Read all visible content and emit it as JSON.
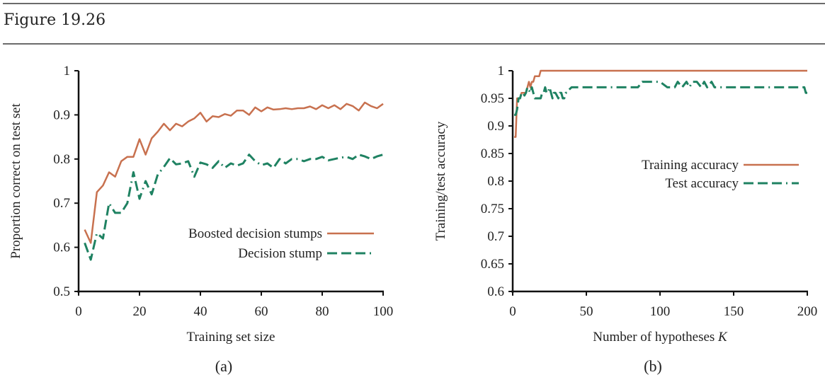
{
  "figure": {
    "title": "Figure 19.26"
  },
  "colors": {
    "orange": "#c8714f",
    "green": "#1f8262",
    "axis": "#111111",
    "rule": "#6b6b6b"
  },
  "chart_data": [
    {
      "type": "line",
      "panel_label": "(a)",
      "title": "",
      "xlabel": "Training set size",
      "ylabel": "Proportion correct on test set",
      "xlim": [
        0,
        100
      ],
      "ylim": [
        0.5,
        1
      ],
      "xticks": [
        0,
        20,
        40,
        60,
        80,
        100
      ],
      "xtick_labels": [
        "0",
        "20",
        "40",
        "60",
        "80",
        "100"
      ],
      "yticks": [
        0.5,
        0.6,
        0.7,
        0.8,
        0.9,
        1
      ],
      "ytick_labels": [
        "0.5",
        "0.6",
        "0.7",
        "0.8",
        "0.9",
        "1"
      ],
      "grid": false,
      "legend_position": "center-right",
      "x": [
        2,
        4,
        6,
        8,
        10,
        12,
        14,
        16,
        18,
        20,
        22,
        24,
        26,
        28,
        30,
        32,
        34,
        36,
        38,
        40,
        42,
        44,
        46,
        48,
        50,
        52,
        54,
        56,
        58,
        60,
        62,
        64,
        66,
        68,
        70,
        72,
        74,
        76,
        78,
        80,
        82,
        84,
        86,
        88,
        90,
        92,
        94,
        96,
        98,
        100
      ],
      "series": [
        {
          "name": "Boosted decision stumps",
          "style": "solid",
          "color": "#c8714f",
          "values": [
            0.64,
            0.61,
            0.725,
            0.74,
            0.77,
            0.76,
            0.795,
            0.805,
            0.805,
            0.845,
            0.81,
            0.847,
            0.862,
            0.88,
            0.865,
            0.88,
            0.874,
            0.885,
            0.892,
            0.905,
            0.885,
            0.897,
            0.895,
            0.902,
            0.898,
            0.91,
            0.91,
            0.9,
            0.917,
            0.908,
            0.917,
            0.912,
            0.913,
            0.915,
            0.913,
            0.915,
            0.915,
            0.919,
            0.913,
            0.922,
            0.915,
            0.922,
            0.913,
            0.925,
            0.92,
            0.91,
            0.928,
            0.92,
            0.915,
            0.925
          ]
        },
        {
          "name": "Decision stump",
          "style": "dashed",
          "color": "#1f8262",
          "values": [
            0.61,
            0.572,
            0.632,
            0.62,
            0.7,
            0.678,
            0.678,
            0.7,
            0.77,
            0.71,
            0.75,
            0.72,
            0.765,
            0.782,
            0.802,
            0.788,
            0.79,
            0.795,
            0.76,
            0.792,
            0.788,
            0.78,
            0.795,
            0.78,
            0.79,
            0.785,
            0.79,
            0.81,
            0.795,
            0.786,
            0.79,
            0.78,
            0.8,
            0.79,
            0.8,
            0.8,
            0.795,
            0.8,
            0.8,
            0.805,
            0.797,
            0.8,
            0.803,
            0.805,
            0.8,
            0.81,
            0.806,
            0.8,
            0.806,
            0.81
          ]
        }
      ]
    },
    {
      "type": "line",
      "panel_label": "(b)",
      "title": "",
      "xlabel_prefix": "Number of hypotheses ",
      "xlabel_var": "K",
      "xlabel": "Number of hypotheses K",
      "ylabel": "Training/test accuracy",
      "xlim": [
        0,
        200
      ],
      "ylim": [
        0.6,
        1
      ],
      "xticks": [
        0,
        50,
        100,
        150,
        200
      ],
      "xtick_labels": [
        "0",
        "50",
        "100",
        "150",
        "200"
      ],
      "yticks": [
        0.6,
        0.65,
        0.7,
        0.75,
        0.8,
        0.85,
        0.9,
        0.95,
        1
      ],
      "ytick_labels": [
        "0.6",
        "0.65",
        "0.7",
        "0.75",
        "0.8",
        "0.85",
        "0.9",
        "0.95",
        "1"
      ],
      "grid": false,
      "legend_position": "center-right",
      "series": [
        {
          "name": "Training accuracy",
          "style": "solid",
          "color": "#c8714f",
          "x": [
            1,
            2,
            3,
            4,
            5,
            6,
            7,
            8,
            9,
            10,
            11,
            12,
            13,
            14,
            15,
            16,
            17,
            18,
            19,
            20,
            200
          ],
          "values": [
            0.88,
            0.88,
            0.95,
            0.95,
            0.95,
            0.96,
            0.96,
            0.96,
            0.96,
            0.97,
            0.98,
            0.97,
            0.98,
            0.98,
            0.99,
            0.99,
            0.99,
            0.99,
            1,
            1,
            1
          ]
        },
        {
          "name": "Test accuracy",
          "style": "dashed",
          "color": "#1f8262",
          "x": [
            1,
            2,
            3,
            4,
            5,
            6,
            7,
            8,
            9,
            10,
            11,
            12,
            13,
            14,
            15,
            16,
            17,
            18,
            19,
            20,
            21,
            22,
            23,
            24,
            25,
            26,
            27,
            28,
            29,
            30,
            31,
            32,
            33,
            34,
            35,
            36,
            37,
            38,
            40,
            50,
            60,
            70,
            80,
            85,
            88,
            90,
            92,
            95,
            100,
            105,
            108,
            110,
            112,
            115,
            118,
            120,
            122,
            125,
            128,
            130,
            132,
            135,
            137,
            138,
            140,
            150,
            160,
            170,
            180,
            190,
            198,
            199,
            200
          ],
          "values": [
            0.92,
            0.92,
            0.93,
            0.95,
            0.95,
            0.96,
            0.96,
            0.955,
            0.96,
            0.97,
            0.965,
            0.96,
            0.97,
            0.96,
            0.95,
            0.95,
            0.95,
            0.95,
            0.95,
            0.96,
            0.96,
            0.97,
            0.96,
            0.96,
            0.97,
            0.96,
            0.95,
            0.96,
            0.96,
            0.955,
            0.95,
            0.96,
            0.96,
            0.95,
            0.95,
            0.96,
            0.96,
            0.965,
            0.97,
            0.97,
            0.97,
            0.97,
            0.97,
            0.97,
            0.98,
            0.98,
            0.98,
            0.98,
            0.98,
            0.97,
            0.97,
            0.97,
            0.98,
            0.97,
            0.98,
            0.97,
            0.98,
            0.98,
            0.97,
            0.98,
            0.97,
            0.98,
            0.97,
            0.97,
            0.97,
            0.97,
            0.97,
            0.97,
            0.97,
            0.97,
            0.97,
            0.96,
            0.96
          ]
        }
      ]
    }
  ]
}
